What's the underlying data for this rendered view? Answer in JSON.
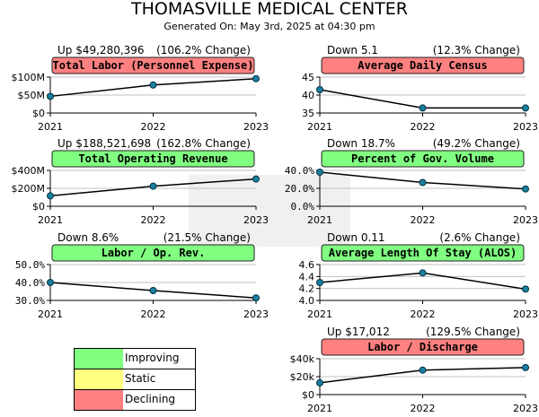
{
  "page": {
    "title": "THOMASVILLE MEDICAL CENTER",
    "subtitle": "Generated On: May 3rd, 2025 at 04:30 pm"
  },
  "colors": {
    "improving": "#80ff80",
    "static": "#ffff80",
    "declining": "#ff8080",
    "marker": "#1a7fa0",
    "grid": "#c0c0c0"
  },
  "legend": [
    {
      "label": "Improving",
      "status": "improving"
    },
    {
      "label": "Static",
      "status": "static"
    },
    {
      "label": "Declining",
      "status": "declining"
    }
  ],
  "chart_data": [
    {
      "type": "line",
      "title": "Total Labor (Personnel Expense)",
      "status": "declining",
      "change_left": "Up $49,280,396",
      "change_right": "(106.2% Change)",
      "categories": [
        "2021",
        "2022",
        "2023"
      ],
      "values": [
        46400000,
        78000000,
        95700000
      ],
      "ylim": [
        0,
        100000000
      ],
      "yticks": [
        {
          "v": 0,
          "label": "$0"
        },
        {
          "v": 50000000,
          "label": "$50M"
        },
        {
          "v": 100000000,
          "label": "$100M"
        }
      ]
    },
    {
      "type": "line",
      "title": "Average Daily Census",
      "status": "declining",
      "change_left": "Down 5.1",
      "change_right": "(12.3% Change)",
      "categories": [
        "2021",
        "2022",
        "2023"
      ],
      "values": [
        41.5,
        36.4,
        36.4
      ],
      "ylim": [
        35,
        45
      ],
      "yticks": [
        {
          "v": 35,
          "label": "35"
        },
        {
          "v": 40,
          "label": "40"
        },
        {
          "v": 45,
          "label": "45"
        }
      ]
    },
    {
      "type": "line",
      "title": "Total Operating Revenue",
      "status": "improving",
      "change_left": "Up $188,521,698",
      "change_right": "(162.8% Change)",
      "categories": [
        "2021",
        "2022",
        "2023"
      ],
      "values": [
        115800000,
        224000000,
        304300000
      ],
      "ylim": [
        0,
        400000000
      ],
      "yticks": [
        {
          "v": 0,
          "label": "$0"
        },
        {
          "v": 200000000,
          "label": "$200M"
        },
        {
          "v": 400000000,
          "label": "$400M"
        }
      ]
    },
    {
      "type": "line",
      "title": "Percent of Gov. Volume",
      "status": "improving",
      "change_left": "Down 18.7%",
      "change_right": "(49.2% Change)",
      "categories": [
        "2021",
        "2022",
        "2023"
      ],
      "values": [
        38.0,
        26.5,
        19.3
      ],
      "ylim": [
        0,
        40
      ],
      "yticks": [
        {
          "v": 0,
          "label": "0.0%"
        },
        {
          "v": 20,
          "label": "20.0%"
        },
        {
          "v": 40,
          "label": "40.0%"
        }
      ]
    },
    {
      "type": "line",
      "title": "Labor / Op. Rev.",
      "status": "improving",
      "change_left": "Down 8.6%",
      "change_right": "(21.5% Change)",
      "categories": [
        "2021",
        "2022",
        "2023"
      ],
      "values": [
        40.0,
        35.5,
        31.4
      ],
      "ylim": [
        30,
        50
      ],
      "yticks": [
        {
          "v": 30,
          "label": "30.0%"
        },
        {
          "v": 40,
          "label": "40.0%"
        },
        {
          "v": 50,
          "label": "50.0%"
        }
      ]
    },
    {
      "type": "line",
      "title": "Average Length Of Stay (ALOS)",
      "status": "improving",
      "change_left": "Down 0.11",
      "change_right": "(2.6% Change)",
      "categories": [
        "2021",
        "2022",
        "2023"
      ],
      "values": [
        4.3,
        4.46,
        4.19
      ],
      "ylim": [
        4.0,
        4.6
      ],
      "yticks": [
        {
          "v": 4.0,
          "label": "4.0"
        },
        {
          "v": 4.2,
          "label": "4.2"
        },
        {
          "v": 4.4,
          "label": "4.4"
        },
        {
          "v": 4.6,
          "label": "4.6"
        }
      ]
    },
    {
      "type": "line",
      "title": "Labor / Discharge",
      "status": "declining",
      "change_left": "Up $17,012",
      "change_right": "(129.5% Change)",
      "categories": [
        "2021",
        "2022",
        "2023"
      ],
      "values": [
        13100,
        27300,
        30100
      ],
      "ylim": [
        0,
        40000
      ],
      "yticks": [
        {
          "v": 0,
          "label": "$0"
        },
        {
          "v": 20000,
          "label": "$20k"
        },
        {
          "v": 40000,
          "label": "$40k"
        }
      ]
    }
  ]
}
